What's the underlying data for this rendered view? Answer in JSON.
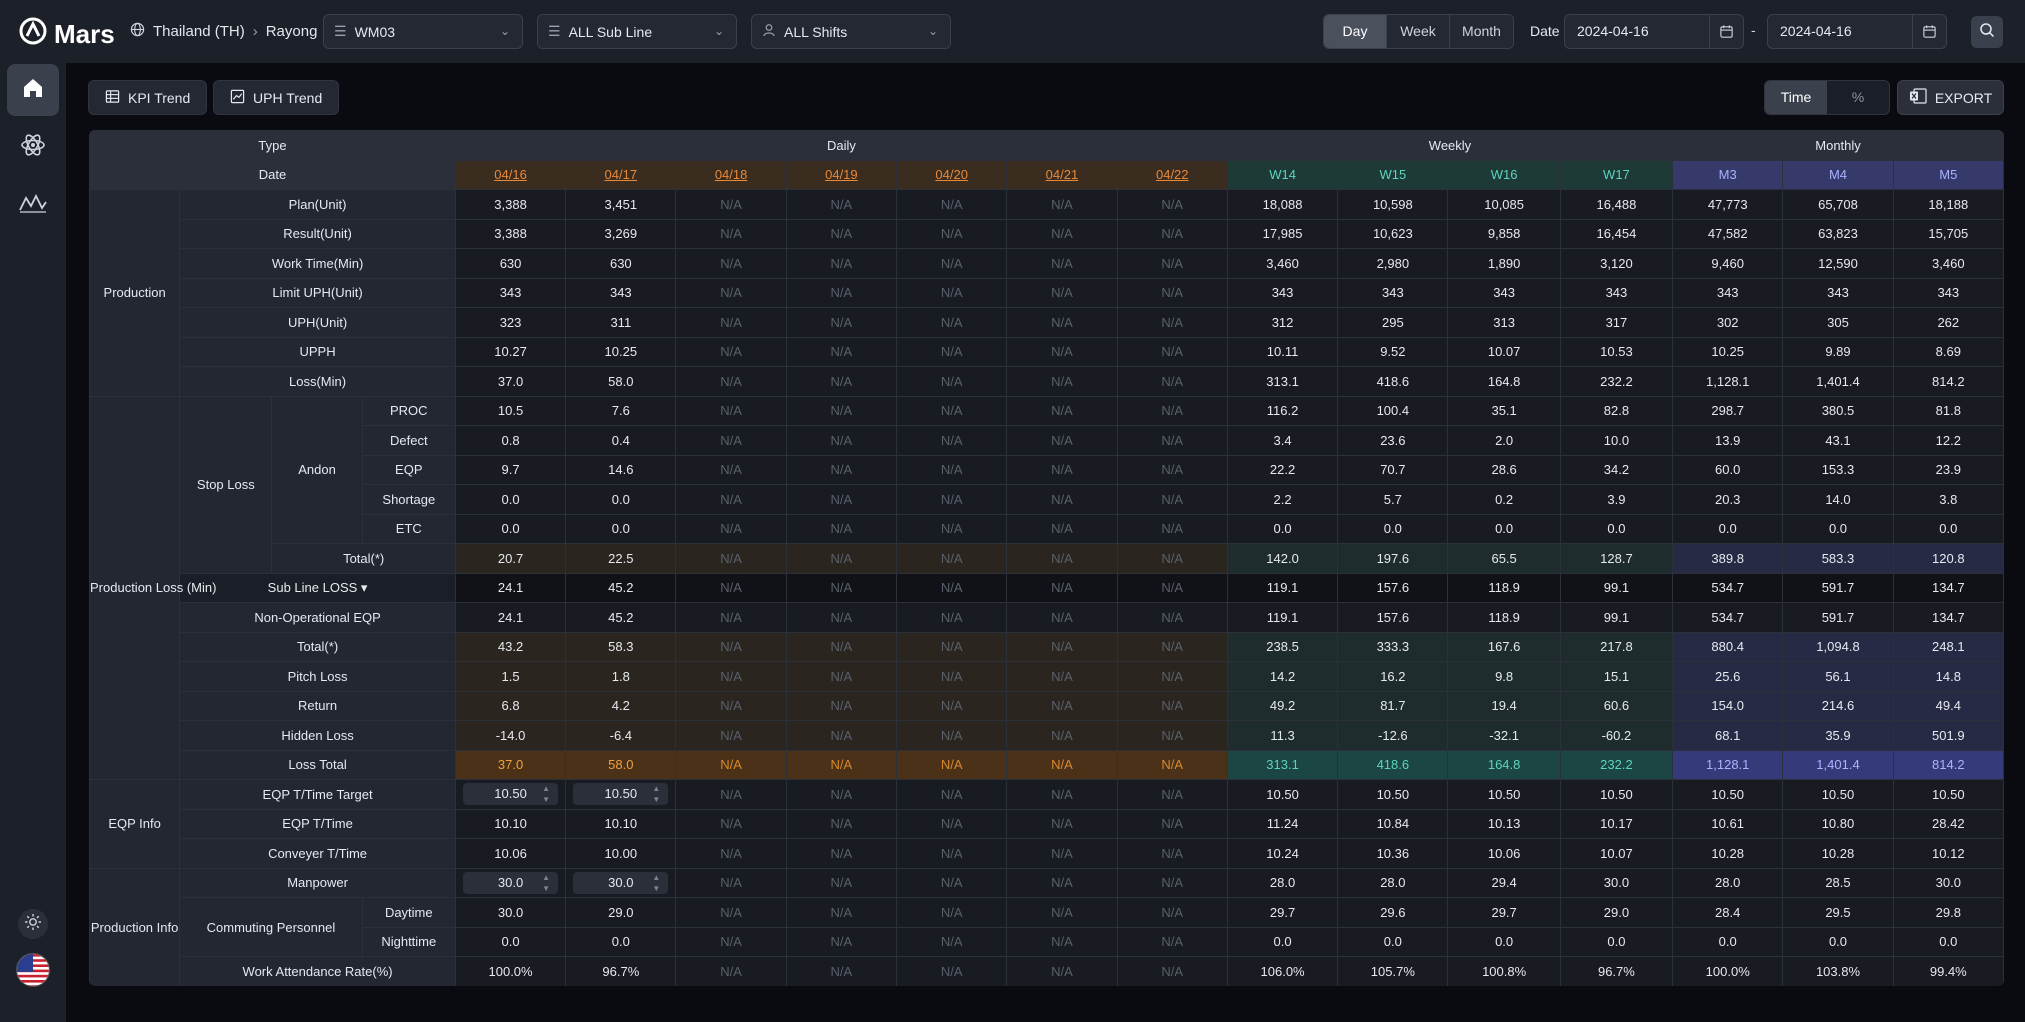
{
  "app": {
    "name": "Mars"
  },
  "location": {
    "country": "Thailand (TH)",
    "site": "Rayong"
  },
  "filters": {
    "line": "WM03",
    "sub_line": "ALL Sub Line",
    "shift": "ALL Shifts"
  },
  "period": {
    "options": [
      "Day",
      "Week",
      "Month"
    ],
    "active": "Day"
  },
  "date": {
    "label": "Date",
    "from": "2024-04-16",
    "to": "2024-04-16",
    "separator": "-"
  },
  "toolbar": {
    "kpi_trend": "KPI Trend",
    "uph_trend": "UPH Trend",
    "unit_toggle": [
      "Time",
      "%"
    ],
    "unit_active": "Time",
    "export": "EXPORT"
  },
  "table": {
    "header": {
      "type": "Type",
      "date": "Date",
      "daily": "Daily",
      "weekly": "Weekly",
      "monthly": "Monthly"
    },
    "daily_cols": [
      "04/16",
      "04/17",
      "04/18",
      "04/19",
      "04/20",
      "04/21",
      "04/22"
    ],
    "weekly_cols": [
      "W14",
      "W15",
      "W16",
      "W17"
    ],
    "monthly_cols": [
      "M3",
      "M4",
      "M5"
    ],
    "groups": {
      "production": "Production",
      "production_loss": "Production Loss (Min)",
      "stop_loss": "Stop Loss",
      "andon": "Andon",
      "eqp_info": "EQP Info",
      "production_info": "Production Info",
      "commuting": "Commuting Personnel"
    },
    "rows": [
      {
        "label": "Plan(Unit)",
        "daily": [
          "3,388",
          "3,451",
          "N/A",
          "N/A",
          "N/A",
          "N/A",
          "N/A"
        ],
        "weekly": [
          "18,088",
          "10,598",
          "10,085",
          "16,488"
        ],
        "monthly": [
          "47,773",
          "65,708",
          "18,188"
        ]
      },
      {
        "label": "Result(Unit)",
        "daily": [
          "3,388",
          "3,269",
          "N/A",
          "N/A",
          "N/A",
          "N/A",
          "N/A"
        ],
        "weekly": [
          "17,985",
          "10,623",
          "9,858",
          "16,454"
        ],
        "monthly": [
          "47,582",
          "63,823",
          "15,705"
        ]
      },
      {
        "label": "Work Time(Min)",
        "daily": [
          "630",
          "630",
          "N/A",
          "N/A",
          "N/A",
          "N/A",
          "N/A"
        ],
        "weekly": [
          "3,460",
          "2,980",
          "1,890",
          "3,120"
        ],
        "monthly": [
          "9,460",
          "12,590",
          "3,460"
        ]
      },
      {
        "label": "Limit UPH(Unit)",
        "daily": [
          "343",
          "343",
          "N/A",
          "N/A",
          "N/A",
          "N/A",
          "N/A"
        ],
        "weekly": [
          "343",
          "343",
          "343",
          "343"
        ],
        "monthly": [
          "343",
          "343",
          "343"
        ]
      },
      {
        "label": "UPH(Unit)",
        "daily": [
          "323",
          "311",
          "N/A",
          "N/A",
          "N/A",
          "N/A",
          "N/A"
        ],
        "weekly": [
          "312",
          "295",
          "313",
          "317"
        ],
        "monthly": [
          "302",
          "305",
          "262"
        ]
      },
      {
        "label": "UPPH",
        "daily": [
          "10.27",
          "10.25",
          "N/A",
          "N/A",
          "N/A",
          "N/A",
          "N/A"
        ],
        "weekly": [
          "10.11",
          "9.52",
          "10.07",
          "10.53"
        ],
        "monthly": [
          "10.25",
          "9.89",
          "8.69"
        ]
      },
      {
        "label": "Loss(Min)",
        "daily": [
          "37.0",
          "58.0",
          "N/A",
          "N/A",
          "N/A",
          "N/A",
          "N/A"
        ],
        "weekly": [
          "313.1",
          "418.6",
          "164.8",
          "232.2"
        ],
        "monthly": [
          "1,128.1",
          "1,401.4",
          "814.2"
        ]
      },
      {
        "label": "PROC",
        "daily": [
          "10.5",
          "7.6",
          "N/A",
          "N/A",
          "N/A",
          "N/A",
          "N/A"
        ],
        "weekly": [
          "116.2",
          "100.4",
          "35.1",
          "82.8"
        ],
        "monthly": [
          "298.7",
          "380.5",
          "81.8"
        ]
      },
      {
        "label": "Defect",
        "daily": [
          "0.8",
          "0.4",
          "N/A",
          "N/A",
          "N/A",
          "N/A",
          "N/A"
        ],
        "weekly": [
          "3.4",
          "23.6",
          "2.0",
          "10.0"
        ],
        "monthly": [
          "13.9",
          "43.1",
          "12.2"
        ]
      },
      {
        "label": "EQP",
        "daily": [
          "9.7",
          "14.6",
          "N/A",
          "N/A",
          "N/A",
          "N/A",
          "N/A"
        ],
        "weekly": [
          "22.2",
          "70.7",
          "28.6",
          "34.2"
        ],
        "monthly": [
          "60.0",
          "153.3",
          "23.9"
        ]
      },
      {
        "label": "Shortage",
        "daily": [
          "0.0",
          "0.0",
          "N/A",
          "N/A",
          "N/A",
          "N/A",
          "N/A"
        ],
        "weekly": [
          "2.2",
          "5.7",
          "0.2",
          "3.9"
        ],
        "monthly": [
          "20.3",
          "14.0",
          "3.8"
        ]
      },
      {
        "label": "ETC",
        "daily": [
          "0.0",
          "0.0",
          "N/A",
          "N/A",
          "N/A",
          "N/A",
          "N/A"
        ],
        "weekly": [
          "0.0",
          "0.0",
          "0.0",
          "0.0"
        ],
        "monthly": [
          "0.0",
          "0.0",
          "0.0"
        ]
      },
      {
        "label": "Total(*)",
        "daily": [
          "20.7",
          "22.5",
          "N/A",
          "N/A",
          "N/A",
          "N/A",
          "N/A"
        ],
        "weekly": [
          "142.0",
          "197.6",
          "65.5",
          "128.7"
        ],
        "monthly": [
          "389.8",
          "583.3",
          "120.8"
        ]
      },
      {
        "label": "Sub Line LOSS",
        "daily": [
          "24.1",
          "45.2",
          "N/A",
          "N/A",
          "N/A",
          "N/A",
          "N/A"
        ],
        "weekly": [
          "119.1",
          "157.6",
          "118.9",
          "99.1"
        ],
        "monthly": [
          "534.7",
          "591.7",
          "134.7"
        ]
      },
      {
        "label": "Non-Operational  EQP",
        "daily": [
          "24.1",
          "45.2",
          "N/A",
          "N/A",
          "N/A",
          "N/A",
          "N/A"
        ],
        "weekly": [
          "119.1",
          "157.6",
          "118.9",
          "99.1"
        ],
        "monthly": [
          "534.7",
          "591.7",
          "134.7"
        ]
      },
      {
        "label": "Total(*)",
        "daily": [
          "43.2",
          "58.3",
          "N/A",
          "N/A",
          "N/A",
          "N/A",
          "N/A"
        ],
        "weekly": [
          "238.5",
          "333.3",
          "167.6",
          "217.8"
        ],
        "monthly": [
          "880.4",
          "1,094.8",
          "248.1"
        ]
      },
      {
        "label": "Pitch Loss",
        "daily": [
          "1.5",
          "1.8",
          "N/A",
          "N/A",
          "N/A",
          "N/A",
          "N/A"
        ],
        "weekly": [
          "14.2",
          "16.2",
          "9.8",
          "15.1"
        ],
        "monthly": [
          "25.6",
          "56.1",
          "14.8"
        ]
      },
      {
        "label": "Return",
        "daily": [
          "6.8",
          "4.2",
          "N/A",
          "N/A",
          "N/A",
          "N/A",
          "N/A"
        ],
        "weekly": [
          "49.2",
          "81.7",
          "19.4",
          "60.6"
        ],
        "monthly": [
          "154.0",
          "214.6",
          "49.4"
        ]
      },
      {
        "label": "Hidden Loss",
        "daily": [
          "-14.0",
          "-6.4",
          "N/A",
          "N/A",
          "N/A",
          "N/A",
          "N/A"
        ],
        "weekly": [
          "11.3",
          "-12.6",
          "-32.1",
          "-60.2"
        ],
        "monthly": [
          "68.1",
          "35.9",
          "501.9"
        ]
      },
      {
        "label": "Loss Total",
        "daily": [
          "37.0",
          "58.0",
          "N/A",
          "N/A",
          "N/A",
          "N/A",
          "N/A"
        ],
        "weekly": [
          "313.1",
          "418.6",
          "164.8",
          "232.2"
        ],
        "monthly": [
          "1,128.1",
          "1,401.4",
          "814.2"
        ]
      },
      {
        "label": "EQP T/Time Target",
        "daily": [
          "10.50",
          "10.50",
          "N/A",
          "N/A",
          "N/A",
          "N/A",
          "N/A"
        ],
        "weekly": [
          "10.50",
          "10.50",
          "10.50",
          "10.50"
        ],
        "monthly": [
          "10.50",
          "10.50",
          "10.50"
        ]
      },
      {
        "label": "EQP T/Time",
        "daily": [
          "10.10",
          "10.10",
          "N/A",
          "N/A",
          "N/A",
          "N/A",
          "N/A"
        ],
        "weekly": [
          "11.24",
          "10.84",
          "10.13",
          "10.17"
        ],
        "monthly": [
          "10.61",
          "10.80",
          "28.42"
        ]
      },
      {
        "label": "Conveyer T/Time",
        "daily": [
          "10.06",
          "10.00",
          "N/A",
          "N/A",
          "N/A",
          "N/A",
          "N/A"
        ],
        "weekly": [
          "10.24",
          "10.36",
          "10.06",
          "10.07"
        ],
        "monthly": [
          "10.28",
          "10.28",
          "10.12"
        ]
      },
      {
        "label": "Manpower",
        "daily": [
          "30.0",
          "30.0",
          "N/A",
          "N/A",
          "N/A",
          "N/A",
          "N/A"
        ],
        "weekly": [
          "28.0",
          "28.0",
          "29.4",
          "30.0"
        ],
        "monthly": [
          "28.0",
          "28.5",
          "30.0"
        ]
      },
      {
        "label": "Daytime",
        "daily": [
          "30.0",
          "29.0",
          "N/A",
          "N/A",
          "N/A",
          "N/A",
          "N/A"
        ],
        "weekly": [
          "29.7",
          "29.6",
          "29.7",
          "29.0"
        ],
        "monthly": [
          "28.4",
          "29.5",
          "29.8"
        ]
      },
      {
        "label": "Nighttime",
        "daily": [
          "0.0",
          "0.0",
          "N/A",
          "N/A",
          "N/A",
          "N/A",
          "N/A"
        ],
        "weekly": [
          "0.0",
          "0.0",
          "0.0",
          "0.0"
        ],
        "monthly": [
          "0.0",
          "0.0",
          "0.0"
        ]
      },
      {
        "label": "Work Attendance Rate(%)",
        "daily": [
          "100.0%",
          "96.7%",
          "N/A",
          "N/A",
          "N/A",
          "N/A",
          "N/A"
        ],
        "weekly": [
          "106.0%",
          "105.7%",
          "100.8%",
          "96.7%"
        ],
        "monthly": [
          "100.0%",
          "103.8%",
          "99.4%"
        ]
      }
    ]
  },
  "icons": {
    "logo": "mars-logo-icon",
    "globe": "globe-icon",
    "home": "home-icon",
    "atom": "atom-icon",
    "chart": "line-chart-icon",
    "settings": "sun-settings-icon",
    "flag": "us-flag-icon",
    "search": "search-icon",
    "calendar": "calendar-icon",
    "export": "excel-icon"
  },
  "colors": {
    "daily_accent": "#e8893a",
    "weekly_accent": "#5ed3bf",
    "monthly_accent": "#a8b2ff"
  }
}
